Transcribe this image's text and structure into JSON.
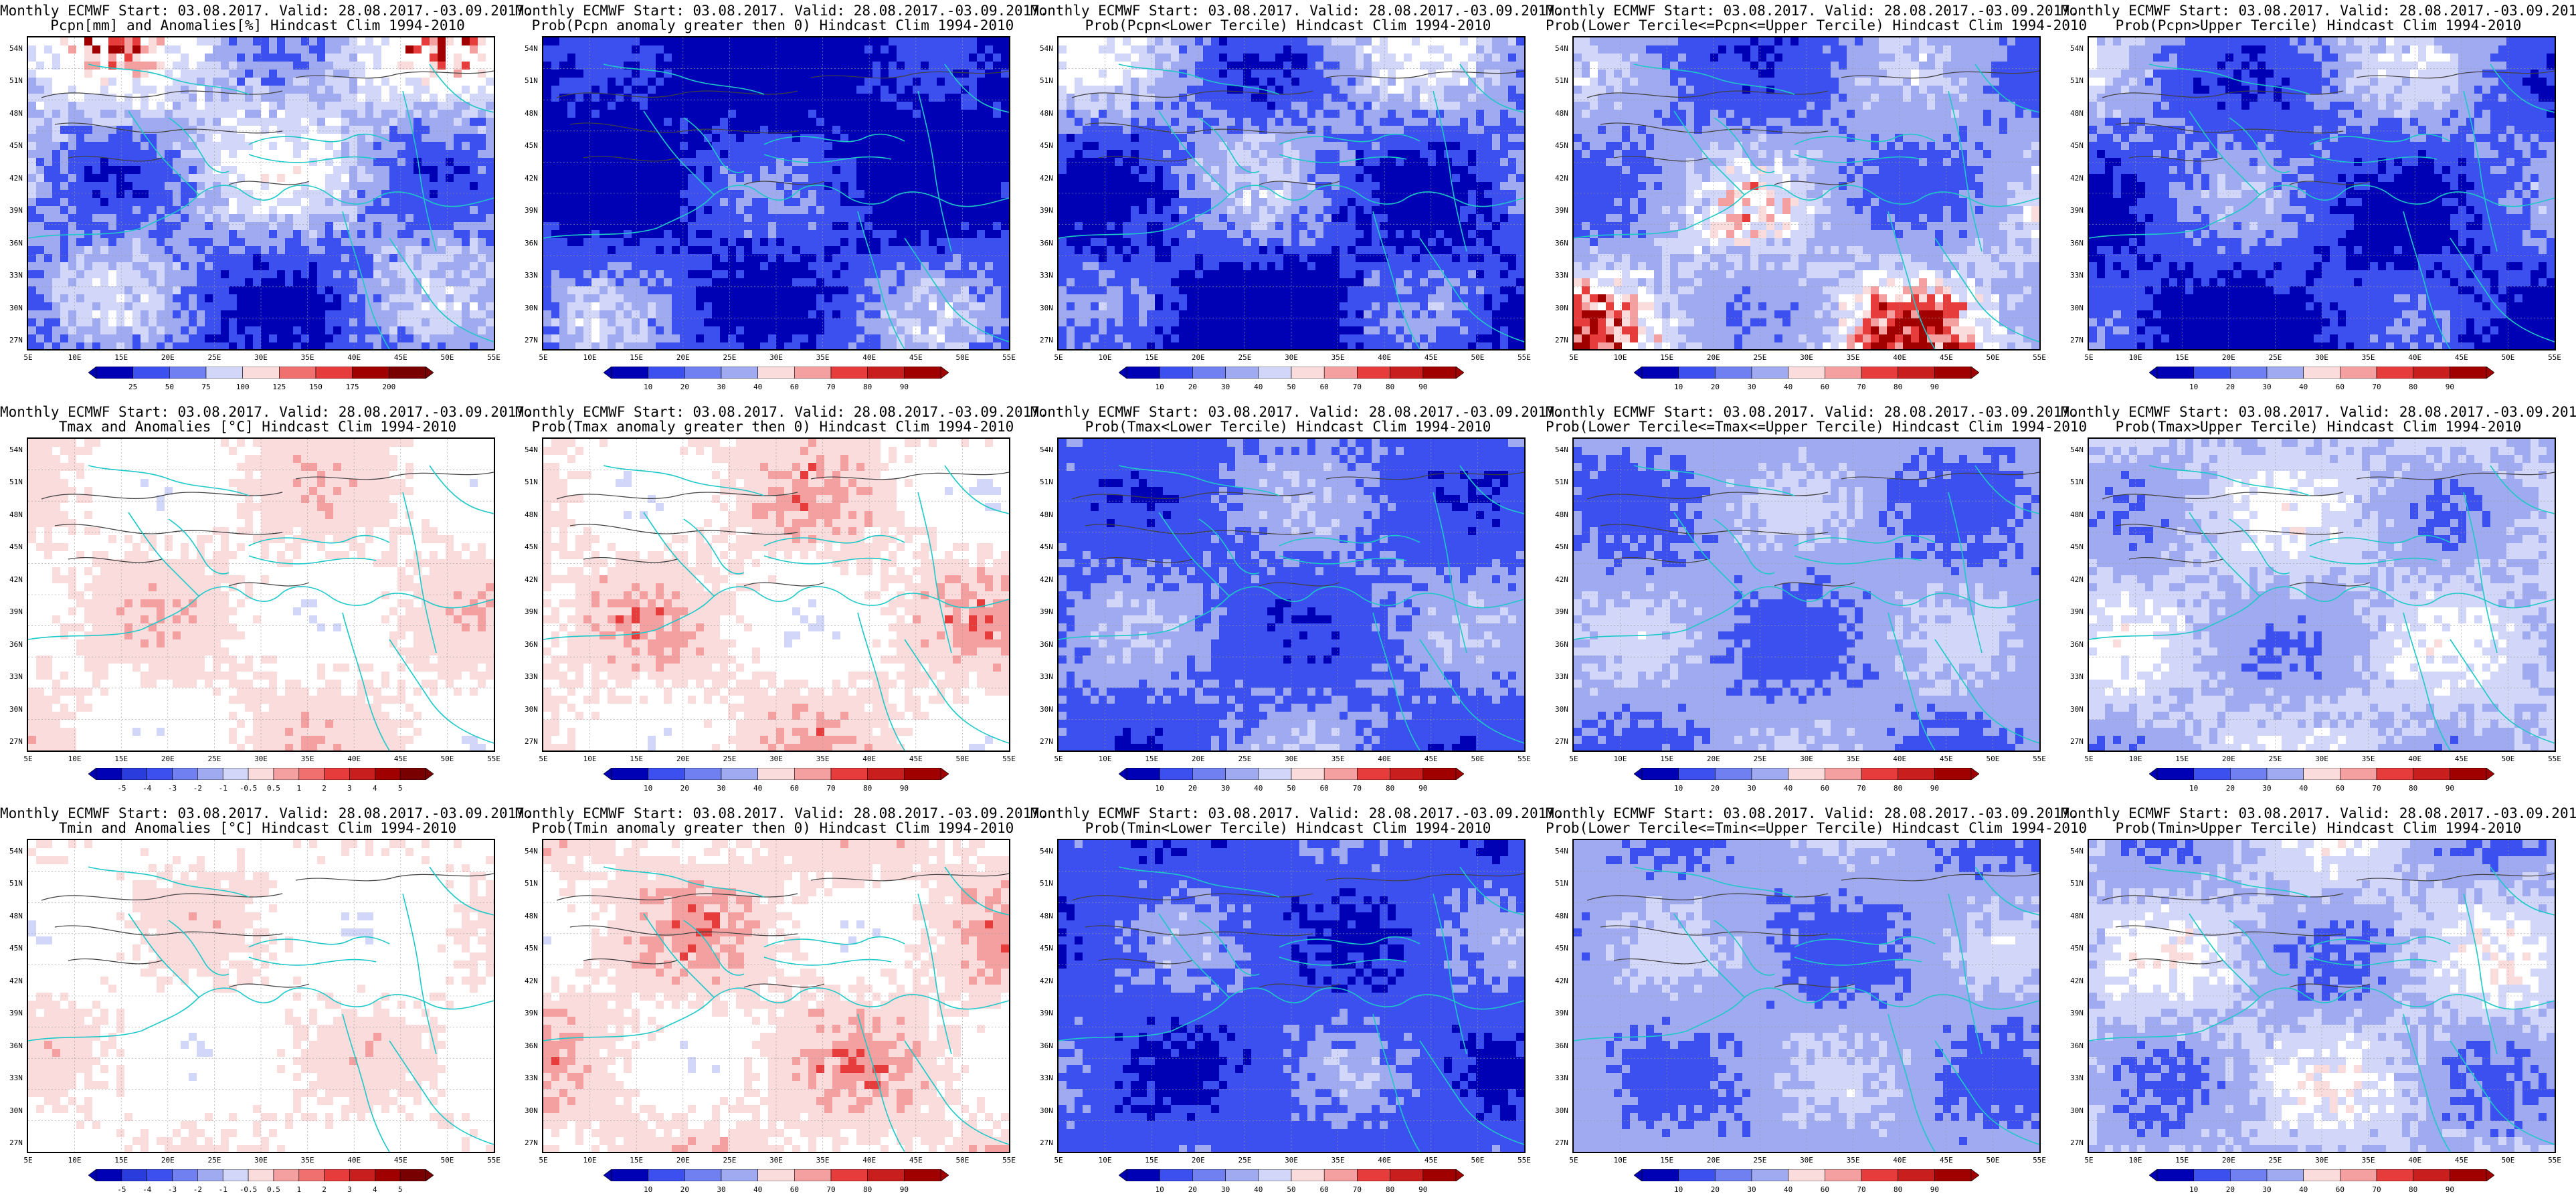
{
  "header_line": "Monthly ECMWF Start: 03.08.2017. Valid: 28.08.2017.-03.09.2017.",
  "lat_labels": [
    "54N",
    "51N",
    "48N",
    "45N",
    "42N",
    "39N",
    "36N",
    "33N",
    "30N",
    "27N"
  ],
  "lon_labels": [
    "5E",
    "10E",
    "15E",
    "20E",
    "25E",
    "30E",
    "35E",
    "40E",
    "45E",
    "50E",
    "55E"
  ],
  "colors": {
    "blue_dark": "#0000b4",
    "blue_mid": "#3c50f0",
    "blue_light": "#a0aaf0",
    "blue_pale": "#d2d7fa",
    "red_pale": "#fadcdc",
    "red_light": "#f5a0a0",
    "red_mid": "#e63c3c",
    "red_dark": "#a00000",
    "coast": "#1ec8c8",
    "contour": "#404040"
  },
  "panels": [
    {
      "title": "Pcpn[mm] and Anomalies[%] Hindcast Clim 1994-2010",
      "scale": [
        "25",
        "50",
        "75",
        "100",
        "125",
        "150",
        "175",
        "200"
      ],
      "palette": "anom",
      "cover": {
        "blue_dark": 0.22,
        "blue_mid": 0.2,
        "blue_light": 0.14,
        "blue_pale": 0.14,
        "white": 0.18,
        "red_pale": 0.04,
        "red_light": 0.03,
        "red_mid": 0.03,
        "red_dark": 0.02
      }
    },
    {
      "title": "Prob(Pcpn anomaly greater then 0) Hindcast Clim 1994-2010",
      "scale": [
        "10",
        "20",
        "30",
        "40",
        "60",
        "70",
        "80",
        "90"
      ],
      "palette": "prob",
      "cover": {
        "blue_dark": 0.5,
        "blue_mid": 0.22,
        "blue_light": 0.14,
        "blue_pale": 0.1,
        "white": 0.04
      }
    },
    {
      "title": "Prob(Pcpn<Lower Tercile) Hindcast Clim 1994-2010",
      "scale": [
        "10",
        "20",
        "30",
        "40",
        "50",
        "60",
        "70",
        "80",
        "90"
      ],
      "palette": "prob",
      "cover": {
        "blue_dark": 0.4,
        "blue_mid": 0.18,
        "blue_light": 0.15,
        "blue_pale": 0.12,
        "white": 0.15
      }
    },
    {
      "title": "Prob(Lower Tercile<=Pcpn<=Upper Tercile) Hindcast Clim 1994-2010",
      "scale": [
        "10",
        "20",
        "30",
        "40",
        "60",
        "70",
        "80",
        "90"
      ],
      "palette": "prob",
      "cover": {
        "blue_dark": 0.08,
        "blue_mid": 0.28,
        "blue_light": 0.22,
        "blue_pale": 0.12,
        "white": 0.06,
        "red_pale": 0.04,
        "red_light": 0.05,
        "red_mid": 0.07,
        "red_dark": 0.08
      }
    },
    {
      "title": "Prob(Pcpn>Upper Tercile) Hindcast Clim 1994-2010",
      "scale": [
        "10",
        "20",
        "30",
        "40",
        "60",
        "70",
        "80",
        "90"
      ],
      "palette": "prob",
      "cover": {
        "blue_dark": 0.38,
        "blue_mid": 0.24,
        "blue_light": 0.18,
        "blue_pale": 0.14,
        "white": 0.06
      }
    },
    {
      "title": "Tmax and Anomalies [°C] Hindcast Clim 1994-2010",
      "scale": [
        "-5",
        "-4",
        "-3",
        "-2",
        "-1",
        "-0.5",
        "0.5",
        "1",
        "2",
        "3",
        "4",
        "5"
      ],
      "palette": "anom",
      "cover": {
        "blue_light": 0.06,
        "blue_pale": 0.1,
        "white": 0.34,
        "red_pale": 0.3,
        "red_light": 0.12,
        "red_mid": 0.06,
        "red_dark": 0.02
      }
    },
    {
      "title": "Prob(Tmax anomaly greater then 0) Hindcast Clim 1994-2010",
      "scale": [
        "10",
        "20",
        "30",
        "40",
        "60",
        "70",
        "80",
        "90"
      ],
      "palette": "prob",
      "cover": {
        "blue_light": 0.08,
        "blue_pale": 0.1,
        "white": 0.3,
        "red_pale": 0.22,
        "red_light": 0.14,
        "red_mid": 0.12,
        "red_dark": 0.04
      }
    },
    {
      "title": "Prob(Tmax<Lower Tercile) Hindcast Clim 1994-2010",
      "scale": [
        "10",
        "20",
        "30",
        "40",
        "50",
        "60",
        "70",
        "80",
        "90"
      ],
      "palette": "prob",
      "cover": {
        "blue_dark": 0.22,
        "blue_mid": 0.32,
        "blue_light": 0.22,
        "blue_pale": 0.16,
        "white": 0.08
      }
    },
    {
      "title": "Prob(Lower Tercile<=Tmax<=Upper Tercile) Hindcast Clim 1994-2010",
      "scale": [
        "10",
        "20",
        "30",
        "40",
        "60",
        "70",
        "80",
        "90"
      ],
      "palette": "prob",
      "cover": {
        "blue_dark": 0.1,
        "blue_mid": 0.3,
        "blue_light": 0.26,
        "blue_pale": 0.2,
        "white": 0.14
      }
    },
    {
      "title": "Prob(Tmax>Upper Tercile) Hindcast Clim 1994-2010",
      "scale": [
        "10",
        "20",
        "30",
        "40",
        "60",
        "70",
        "80",
        "90"
      ],
      "palette": "prob",
      "cover": {
        "blue_dark": 0.08,
        "blue_mid": 0.16,
        "blue_light": 0.24,
        "blue_pale": 0.2,
        "white": 0.16,
        "red_pale": 0.08,
        "red_light": 0.05,
        "red_mid": 0.02,
        "red_dark": 0.01
      }
    },
    {
      "title": "Tmin and Anomalies [°C] Hindcast Clim 1994-2010",
      "scale": [
        "-5",
        "-4",
        "-3",
        "-2",
        "-1",
        "-0.5",
        "0.5",
        "1",
        "2",
        "3",
        "4",
        "5"
      ],
      "palette": "anom",
      "cover": {
        "blue_light": 0.05,
        "blue_pale": 0.12,
        "white": 0.4,
        "red_pale": 0.28,
        "red_light": 0.09,
        "red_mid": 0.04,
        "red_dark": 0.02
      }
    },
    {
      "title": "Prob(Tmin anomaly greater then 0) Hindcast Clim 1994-2010",
      "scale": [
        "10",
        "20",
        "30",
        "40",
        "60",
        "70",
        "80",
        "90"
      ],
      "palette": "prob",
      "cover": {
        "blue_light": 0.06,
        "blue_pale": 0.1,
        "white": 0.28,
        "red_pale": 0.22,
        "red_light": 0.16,
        "red_mid": 0.13,
        "red_dark": 0.05
      }
    },
    {
      "title": "Prob(Tmin<Lower Tercile) Hindcast Clim 1994-2010",
      "scale": [
        "10",
        "20",
        "30",
        "40",
        "50",
        "60",
        "70",
        "80",
        "90"
      ],
      "palette": "prob",
      "cover": {
        "blue_dark": 0.34,
        "blue_mid": 0.3,
        "blue_light": 0.18,
        "blue_pale": 0.12,
        "white": 0.06
      }
    },
    {
      "title": "Prob(Lower Tercile<=Tmin<=Upper Tercile) Hindcast Clim 1994-2010",
      "scale": [
        "10",
        "20",
        "30",
        "40",
        "60",
        "70",
        "80",
        "90"
      ],
      "palette": "prob",
      "cover": {
        "blue_dark": 0.08,
        "blue_mid": 0.3,
        "blue_light": 0.28,
        "blue_pale": 0.2,
        "white": 0.14
      }
    },
    {
      "title": "Prob(Tmin>Upper Tercile) Hindcast Clim 1994-2010",
      "scale": [
        "10",
        "20",
        "30",
        "40",
        "60",
        "70",
        "80",
        "90"
      ],
      "palette": "prob",
      "cover": {
        "blue_dark": 0.12,
        "blue_mid": 0.18,
        "blue_light": 0.2,
        "blue_pale": 0.18,
        "white": 0.12,
        "red_pale": 0.1,
        "red_light": 0.06,
        "red_mid": 0.03,
        "red_dark": 0.01
      }
    }
  ]
}
